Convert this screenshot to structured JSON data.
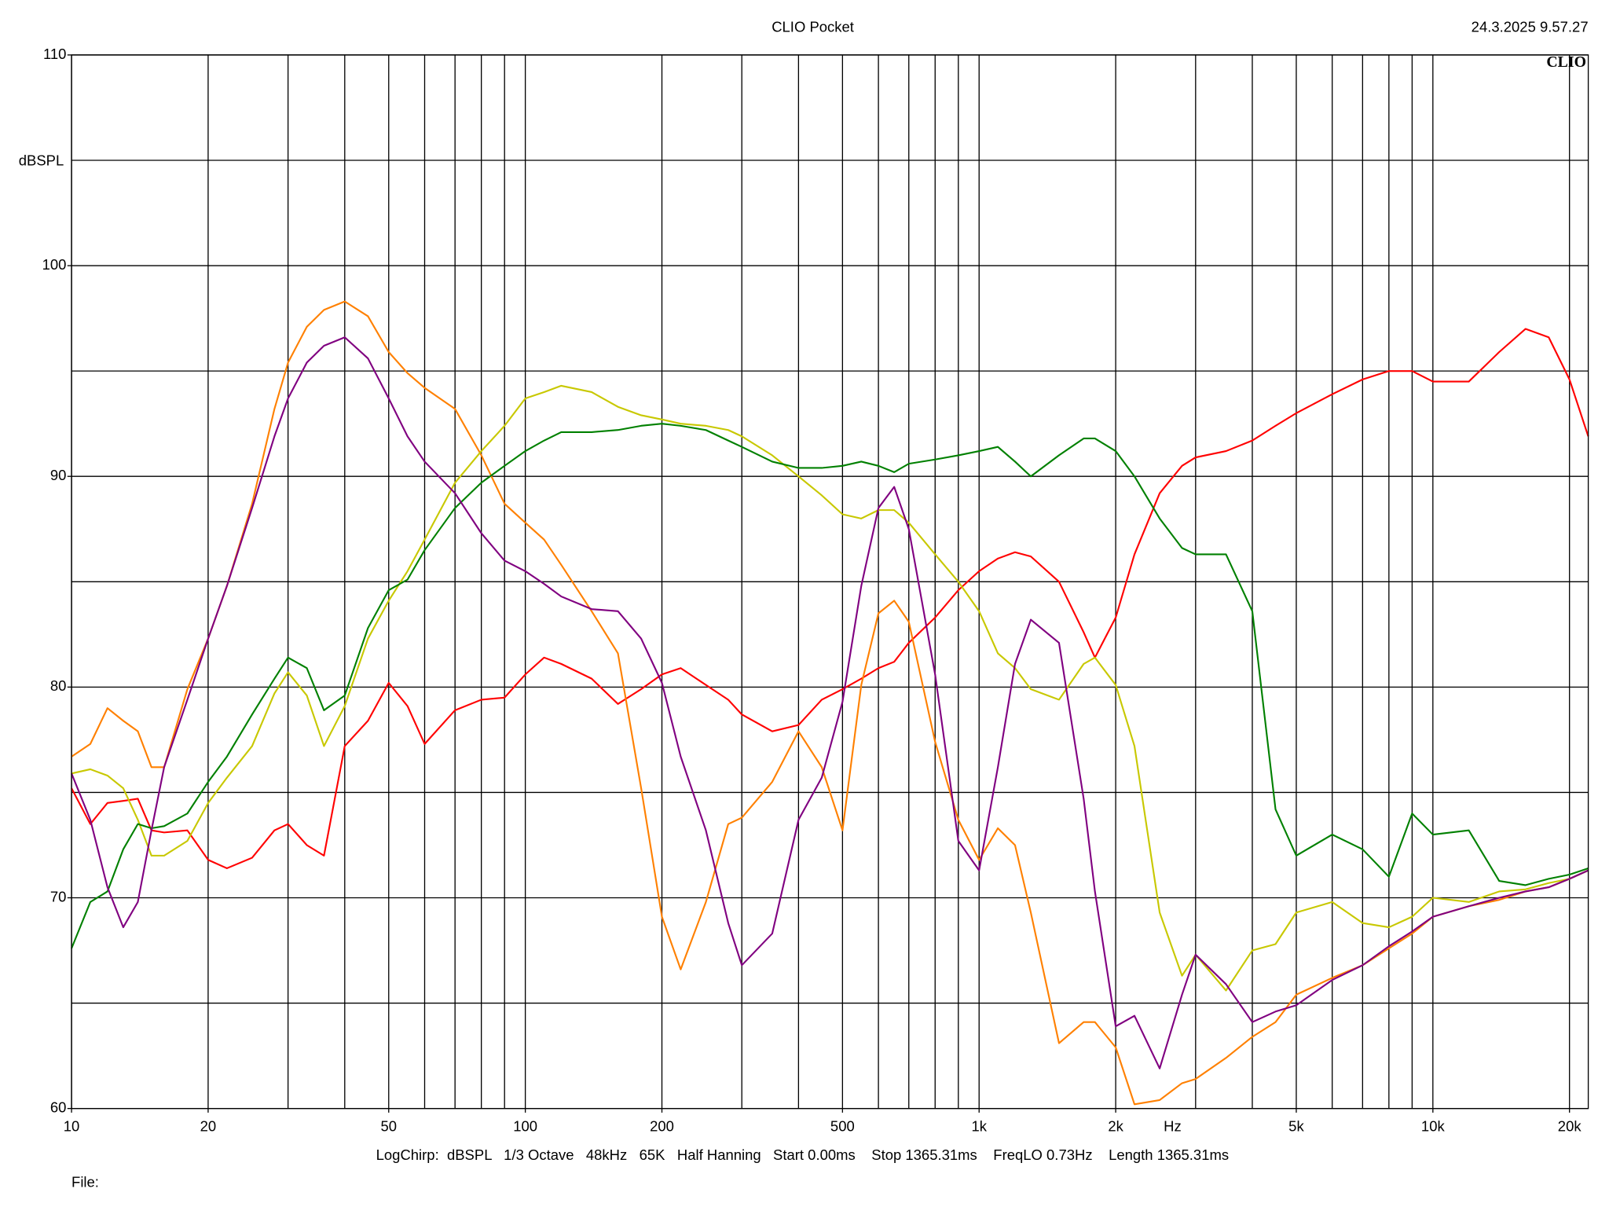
{
  "chart_data": {
    "type": "line",
    "title": "CLIO Pocket",
    "timestamp": "24.3.2025 9.57.27",
    "logo": "CLIO",
    "ylabel": "dBSPL",
    "xlabel": "Hz",
    "info": "LogChirp:  dBSPL   1/3 Octave   48kHz   65K   Half Hanning   Start 0.00ms    Stop 1365.31ms    FreqLO 0.73Hz    Length 1365.31ms",
    "file_label": "File:",
    "xscale": "log",
    "grid": true,
    "xlim": [
      10,
      22000
    ],
    "ylim": [
      60,
      110
    ],
    "yticks": [
      60,
      70,
      80,
      90,
      100,
      110
    ],
    "ygrid": [
      60,
      65,
      70,
      75,
      80,
      85,
      90,
      95,
      100,
      105,
      110
    ],
    "xticks": [
      10,
      20,
      50,
      100,
      200,
      500,
      {
        "value": 1000,
        "label": "1k"
      },
      {
        "value": 2000,
        "label": "2k"
      },
      {
        "value": 5000,
        "label": "5k"
      },
      {
        "value": 10000,
        "label": "10k"
      },
      {
        "value": 20000,
        "label": "20k"
      }
    ],
    "xgrid": [
      10,
      20,
      30,
      40,
      50,
      60,
      70,
      80,
      90,
      100,
      200,
      300,
      400,
      500,
      600,
      700,
      800,
      900,
      1000,
      2000,
      3000,
      4000,
      5000,
      6000,
      7000,
      8000,
      9000,
      10000,
      20000
    ],
    "x": [
      10,
      11,
      12,
      13,
      14,
      15,
      16,
      18,
      20,
      22,
      25,
      28,
      30,
      33,
      36,
      40,
      45,
      50,
      55,
      60,
      70,
      80,
      90,
      100,
      110,
      120,
      140,
      160,
      180,
      200,
      220,
      250,
      280,
      300,
      350,
      400,
      450,
      500,
      550,
      600,
      650,
      700,
      800,
      900,
      1000,
      1100,
      1200,
      1300,
      1500,
      1700,
      1800,
      2000,
      2200,
      2500,
      2800,
      3000,
      3500,
      4000,
      4500,
      5000,
      6000,
      7000,
      8000,
      9000,
      10000,
      12000,
      14000,
      16000,
      18000,
      20000,
      22000
    ],
    "series": [
      {
        "color": "#ff0000",
        "values": [
          75.2,
          73.5,
          74.5,
          74.6,
          74.7,
          73.2,
          73.1,
          73.2,
          71.8,
          71.4,
          71.9,
          73.2,
          73.5,
          72.5,
          72.0,
          77.2,
          78.4,
          80.2,
          79.1,
          77.3,
          78.9,
          79.4,
          79.5,
          80.6,
          81.4,
          81.1,
          80.4,
          79.2,
          79.9,
          80.6,
          80.9,
          80.1,
          79.4,
          78.7,
          77.9,
          78.2,
          79.4,
          79.9,
          80.4,
          80.9,
          81.2,
          82.1,
          83.3,
          84.6,
          85.5,
          86.1,
          86.4,
          86.2,
          85.0,
          82.6,
          81.4,
          83.3,
          86.3,
          89.2,
          90.5,
          90.9,
          91.2,
          91.7,
          92.4,
          93.0,
          93.9,
          94.6,
          95.0,
          95.0,
          94.5,
          94.5,
          95.9,
          97.0,
          96.6,
          94.6,
          91.9
        ]
      },
      {
        "color": "#ff8000",
        "values": [
          76.7,
          77.3,
          79.0,
          78.4,
          77.9,
          76.2,
          76.2,
          79.9,
          82.3,
          84.8,
          88.7,
          93.2,
          95.4,
          97.1,
          97.9,
          98.3,
          97.6,
          95.9,
          94.9,
          94.2,
          93.2,
          91.0,
          88.7,
          87.8,
          87.0,
          85.8,
          83.6,
          81.6,
          75.2,
          69.1,
          66.6,
          69.8,
          73.5,
          73.8,
          75.5,
          77.9,
          76.2,
          73.2,
          80.1,
          83.5,
          84.1,
          83.1,
          77.4,
          73.7,
          71.8,
          73.3,
          72.5,
          69.3,
          63.1,
          64.1,
          64.1,
          62.9,
          60.2,
          60.4,
          61.2,
          61.4,
          62.4,
          63.4,
          64.1,
          65.4,
          66.2,
          66.8,
          67.6,
          68.3,
          69.1,
          69.6,
          69.9,
          70.3,
          70.5,
          70.9,
          71.3
        ]
      },
      {
        "color": "#c8c800",
        "values": [
          75.9,
          76.1,
          75.8,
          75.2,
          73.7,
          72.0,
          72.0,
          72.7,
          74.5,
          75.7,
          77.2,
          79.7,
          80.7,
          79.6,
          77.2,
          79.1,
          82.3,
          84.1,
          85.5,
          87.0,
          89.7,
          91.2,
          92.4,
          93.7,
          94.0,
          94.3,
          94.0,
          93.3,
          92.9,
          92.7,
          92.5,
          92.4,
          92.2,
          91.9,
          91.0,
          90.0,
          89.1,
          88.2,
          88.0,
          88.4,
          88.4,
          87.8,
          86.3,
          85.0,
          83.6,
          81.6,
          80.9,
          79.9,
          79.4,
          81.1,
          81.4,
          80.1,
          77.2,
          69.3,
          66.3,
          67.3,
          65.6,
          67.5,
          67.8,
          69.3,
          69.8,
          68.8,
          68.6,
          69.1,
          70.0,
          69.8,
          70.3,
          70.4,
          70.7,
          70.9,
          71.3
        ]
      },
      {
        "color": "#008000",
        "values": [
          67.6,
          69.8,
          70.3,
          72.3,
          73.5,
          73.3,
          73.4,
          74.0,
          75.5,
          76.7,
          78.7,
          80.4,
          81.4,
          80.9,
          78.9,
          79.6,
          82.8,
          84.6,
          85.1,
          86.5,
          88.5,
          89.7,
          90.5,
          91.2,
          91.7,
          92.1,
          92.1,
          92.2,
          92.4,
          92.5,
          92.4,
          92.2,
          91.7,
          91.4,
          90.7,
          90.4,
          90.4,
          90.5,
          90.7,
          90.5,
          90.2,
          90.6,
          90.8,
          91.0,
          91.2,
          91.4,
          90.7,
          90.0,
          91.0,
          91.8,
          91.8,
          91.2,
          90.0,
          88.0,
          86.6,
          86.3,
          86.3,
          83.6,
          74.2,
          72.0,
          73.0,
          72.3,
          71.0,
          74.0,
          73.0,
          73.2,
          70.8,
          70.6,
          70.9,
          71.1,
          71.4
        ]
      },
      {
        "color": "#800080",
        "values": [
          75.9,
          73.7,
          70.5,
          68.6,
          69.8,
          73.2,
          76.2,
          79.4,
          82.3,
          84.8,
          88.5,
          91.9,
          93.7,
          95.4,
          96.2,
          96.6,
          95.6,
          93.7,
          91.9,
          90.7,
          89.2,
          87.3,
          86.0,
          85.5,
          84.9,
          84.3,
          83.7,
          83.6,
          82.3,
          80.2,
          76.7,
          73.2,
          68.8,
          66.8,
          68.3,
          73.7,
          75.7,
          79.3,
          84.8,
          88.5,
          89.5,
          87.5,
          80.6,
          72.7,
          71.3,
          76.2,
          81.1,
          83.2,
          82.1,
          74.7,
          70.3,
          63.9,
          64.4,
          61.9,
          65.4,
          67.3,
          65.9,
          64.1,
          64.6,
          64.9,
          66.1,
          66.8,
          67.7,
          68.4,
          69.1,
          69.6,
          70.0,
          70.3,
          70.5,
          70.9,
          71.3
        ]
      }
    ]
  }
}
